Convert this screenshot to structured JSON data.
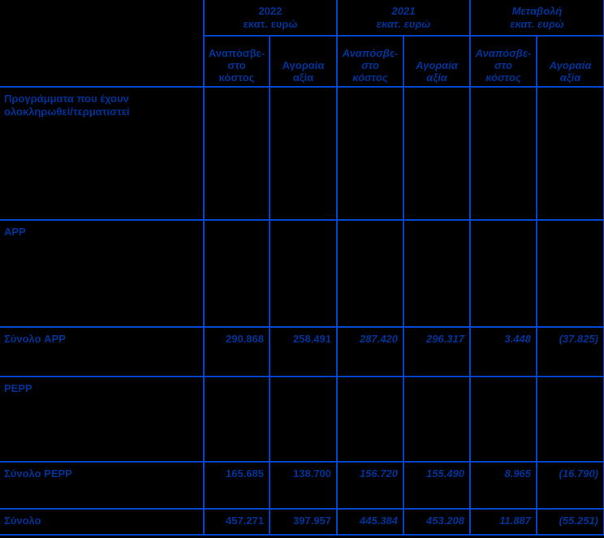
{
  "colors": {
    "background": "#000000",
    "border": "#0044CC",
    "text": "#003399"
  },
  "header": {
    "groups": [
      {
        "title": "2022\nεκατ. ευρώ"
      },
      {
        "title": "2021\nεκατ. ευρώ"
      },
      {
        "title": "Μεταβολή\nεκατ. ευρώ"
      }
    ],
    "columns": [
      {
        "label": "Αναπόσβε-\nστο\nκόστος"
      },
      {
        "label": "Αγοραία\nαξία"
      },
      {
        "label": "Αναπόσβε-\nστο\nκόστος"
      },
      {
        "label": "Αγοραία\nαξία"
      },
      {
        "label": "Αναπόσβε-\nστο\nκόστος"
      },
      {
        "label": "Αγοραία\nαξία"
      }
    ]
  },
  "rows": [
    {
      "label": "Προγράμματα που έχουν\nολοκληρωθεί/τερματιστεί",
      "values": [
        "",
        "",
        "",
        "",
        "",
        ""
      ]
    },
    {
      "label": "APP",
      "values": [
        "",
        "",
        "",
        "",
        "",
        ""
      ]
    },
    {
      "label": "Σύνολο APP",
      "values": [
        "290.868",
        "258.491",
        "287.420",
        "296.317",
        "3.448",
        "(37.825)"
      ]
    },
    {
      "label": "PEPP",
      "values": [
        "",
        "",
        "",
        "",
        "",
        ""
      ]
    },
    {
      "label": "Σύνολο PEPP",
      "values": [
        "165.685",
        "138.700",
        "156.720",
        "155.490",
        "8.965",
        "(16.790)"
      ]
    },
    {
      "label": "Σύνολο",
      "values": [
        "457.271",
        "397.957",
        "445.384",
        "453.208",
        "11.887",
        "(55.251)"
      ]
    }
  ]
}
